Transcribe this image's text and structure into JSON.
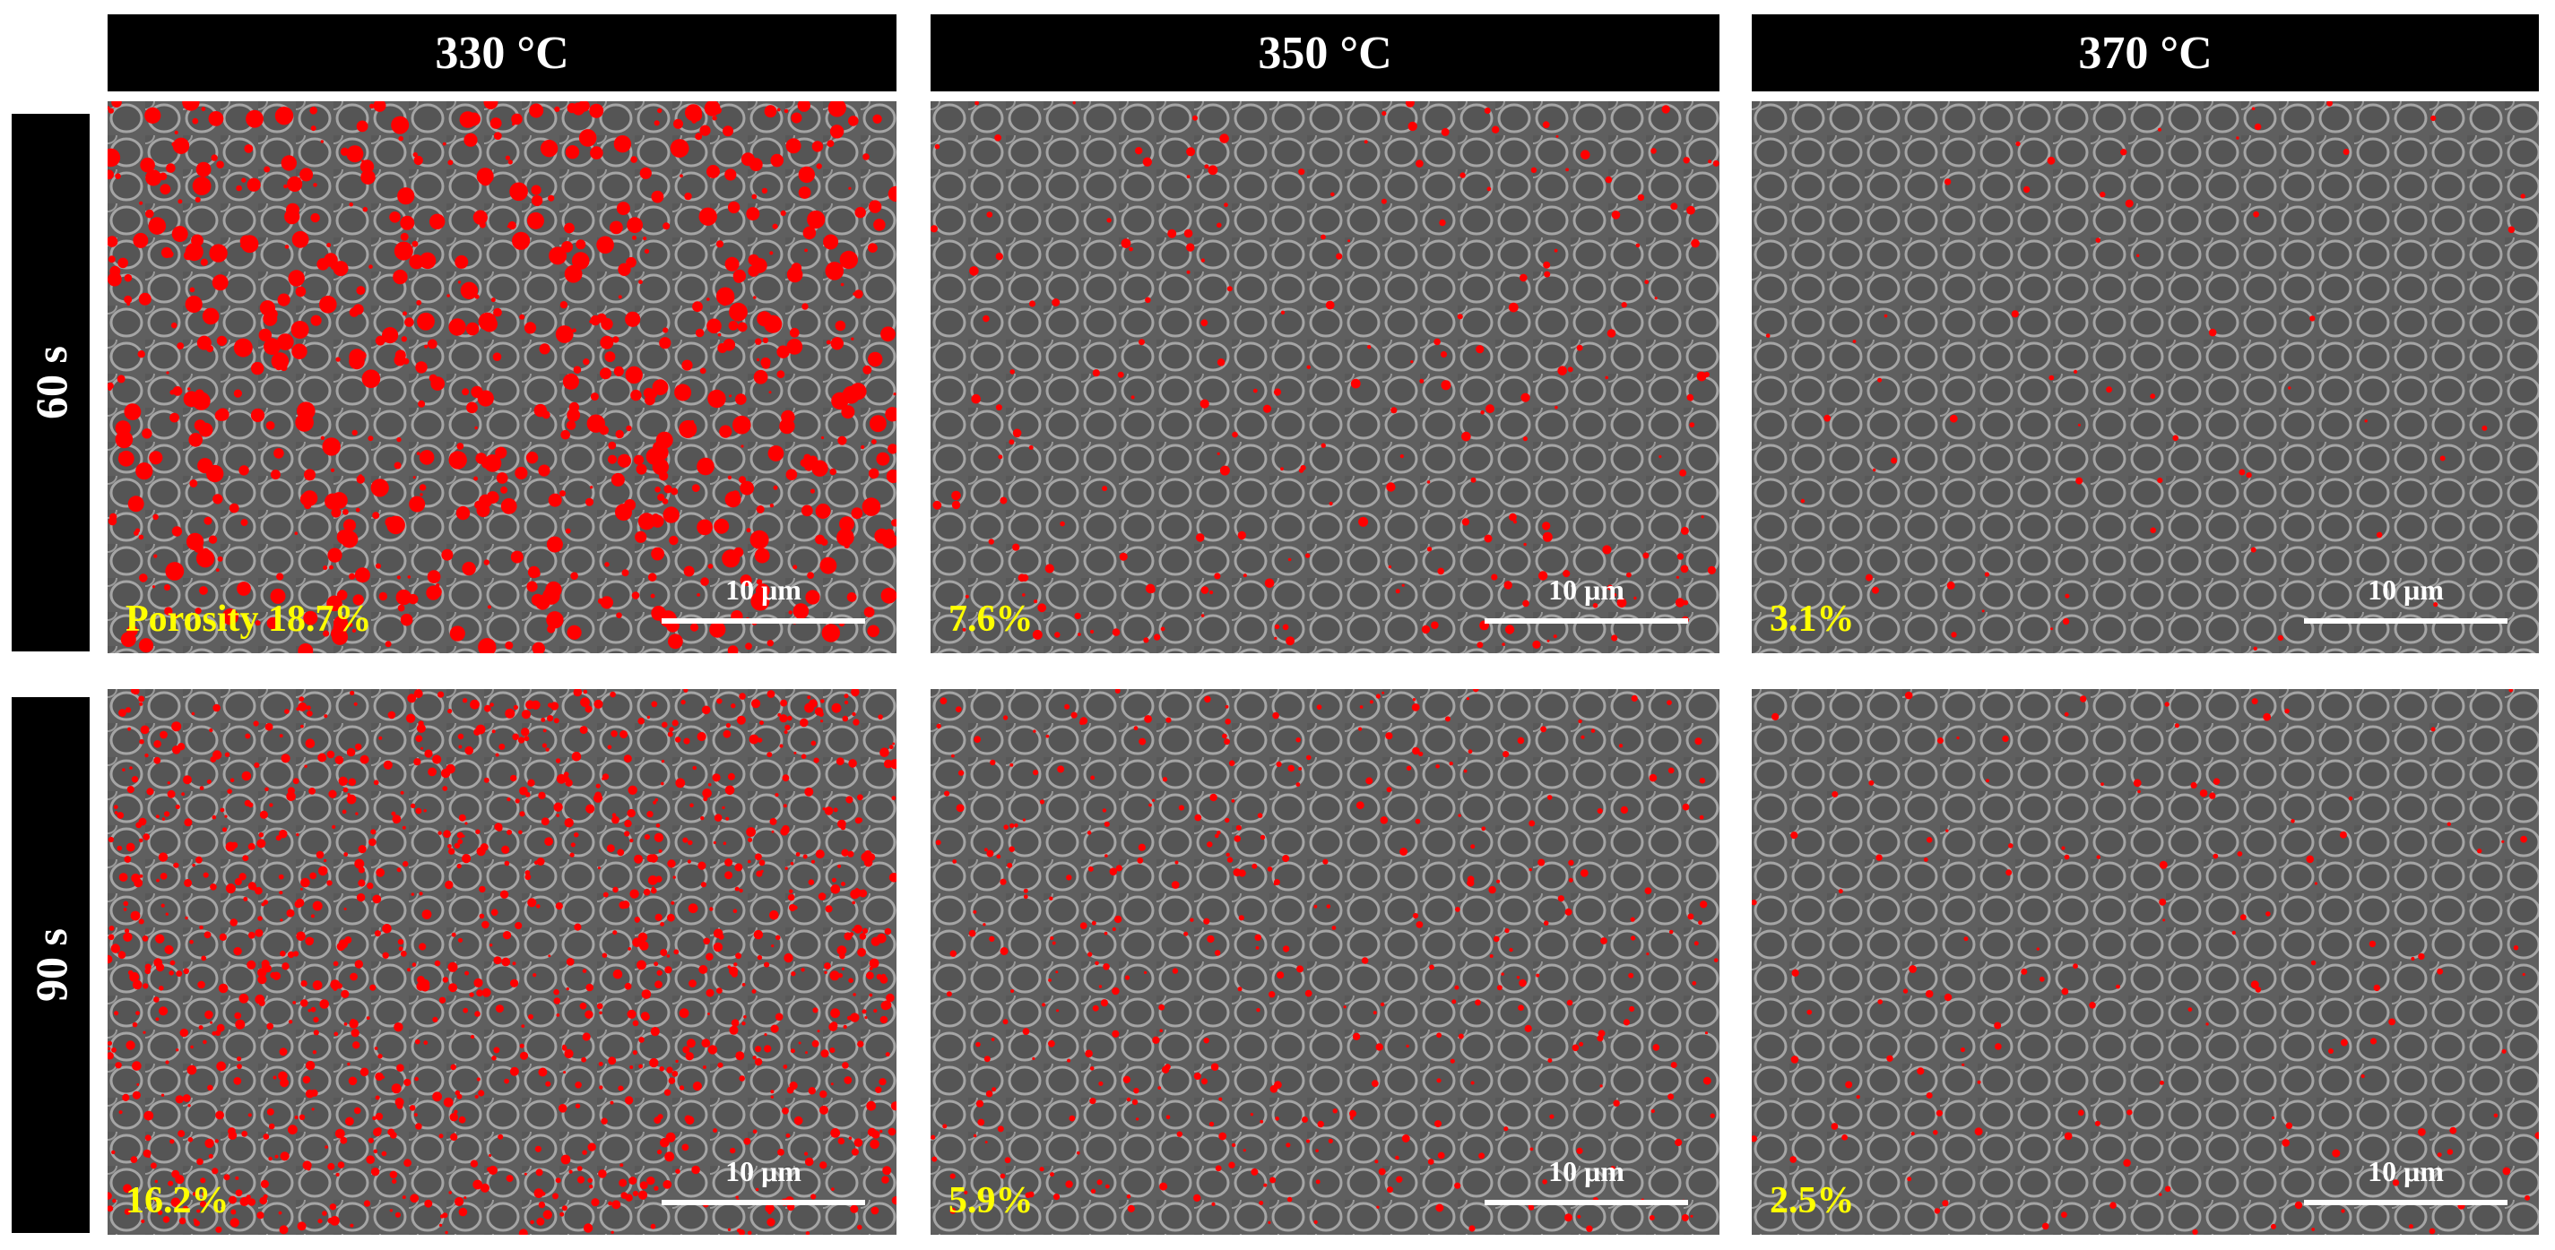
{
  "column_headers": [
    "330 °C",
    "350 °C",
    "370 °C"
  ],
  "row_headers": [
    "60 s",
    "90 s"
  ],
  "panels": [
    [
      {
        "porosity": "Porosity 18.7%",
        "scale_bar": "10 μm"
      },
      {
        "porosity": "7.6%",
        "scale_bar": "10 μm"
      },
      {
        "porosity": "3.1%",
        "scale_bar": "10 μm"
      }
    ],
    [
      {
        "porosity": "16.2%",
        "scale_bar": "10 μm"
      },
      {
        "porosity": "5.9%",
        "scale_bar": "10 μm"
      },
      {
        "porosity": "2.5%",
        "scale_bar": "10 μm"
      }
    ]
  ]
}
